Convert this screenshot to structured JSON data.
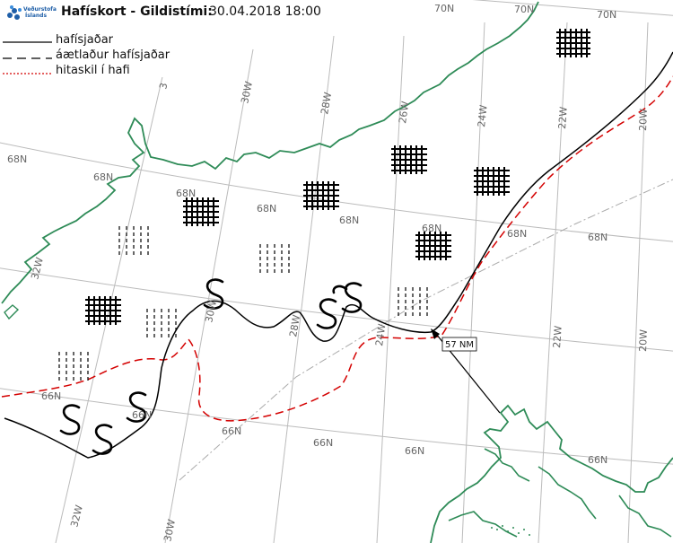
{
  "header": {
    "logo_line1": "Veðurstofa",
    "logo_line2": "Íslands",
    "title_bold": "Hafískort - Gildistími:",
    "title_date": "30.04.2018 18:00"
  },
  "legend": {
    "items": [
      {
        "label": "hafísjaðar",
        "style": "solid"
      },
      {
        "label": "áætlaður hafísjaðar",
        "style": "dashed"
      },
      {
        "label": "hitaskil í hafi",
        "style": "dotted"
      }
    ]
  },
  "colors": {
    "coast": "#2e8b57",
    "ice_edge": "#000000",
    "thermal_front": "#d40000",
    "grid": "#bbbbbb",
    "grid_label": "#666666",
    "dash_dot": "#aaaaaa"
  },
  "annotations": {
    "distance_label": "57 NM"
  },
  "grid": {
    "lat_labels": {
      "70N_a": "70N",
      "70N_b": "70N",
      "70N_c": "70N",
      "68N_a": "68N",
      "68N_b": "68N",
      "68N_c": "68N",
      "68N_d": "68N",
      "68N_e": "68N",
      "68N_f": "68N",
      "68N_g": "68N",
      "66N_a": "66N",
      "66N_b": "66N",
      "66N_c": "66N",
      "66N_d": "66N",
      "66N_e": "66N",
      "66N_f": "66N"
    },
    "lon_labels": {
      "32W": "32W",
      "30W_a": "30W",
      "30W_b": "30W",
      "30W_c": "30W",
      "28W_a": "28W",
      "28W_b": "28W",
      "26W": "26W",
      "24W_a": "24W",
      "24W_b": "24W",
      "22W_a": "22W",
      "22W_b": "22W",
      "20W_a": "20W",
      "20W_b": "20W",
      "32W_bottom": "32W",
      "3_partial": "3"
    }
  }
}
